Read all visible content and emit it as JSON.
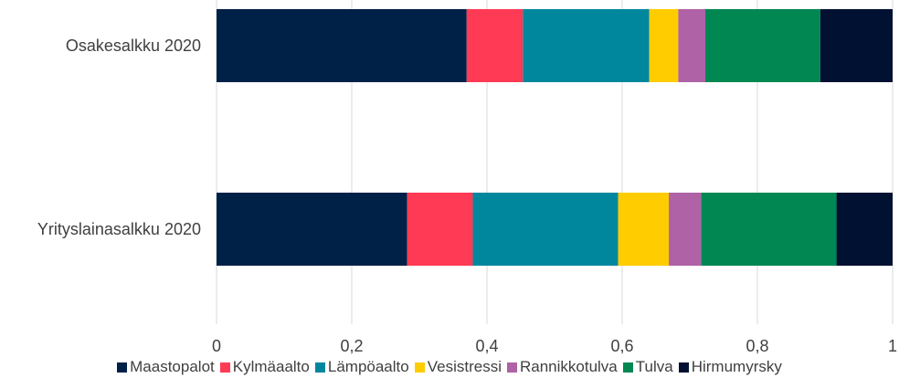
{
  "chart_data": {
    "type": "bar",
    "orientation": "horizontal",
    "stacked": true,
    "categories": [
      "Osakesalkku 2020",
      "Yrityslainasalkku 2020"
    ],
    "series": [
      {
        "name": "Maastopalot",
        "color": "#002147",
        "values": [
          0.37,
          0.282
        ]
      },
      {
        "name": "Kylmäaalto",
        "color": "#FF3A55",
        "values": [
          0.083,
          0.097
        ]
      },
      {
        "name": "Lämpöaalto",
        "color": "#00879E",
        "values": [
          0.187,
          0.215
        ]
      },
      {
        "name": "Vesistressi",
        "color": "#FFCC00",
        "values": [
          0.043,
          0.075
        ]
      },
      {
        "name": "Rannikkotulva",
        "color": "#AF62A6",
        "values": [
          0.04,
          0.048
        ]
      },
      {
        "name": "Tulva",
        "color": "#008752",
        "values": [
          0.17,
          0.2
        ]
      },
      {
        "name": "Hirmumyrsky",
        "color": "#001132",
        "values": [
          0.107,
          0.083
        ]
      }
    ],
    "xlim": [
      0,
      1
    ],
    "xticks": [
      "0",
      "0,2",
      "0,4",
      "0,6",
      "0,8",
      "1"
    ],
    "grid": true,
    "legend_position": "bottom"
  }
}
